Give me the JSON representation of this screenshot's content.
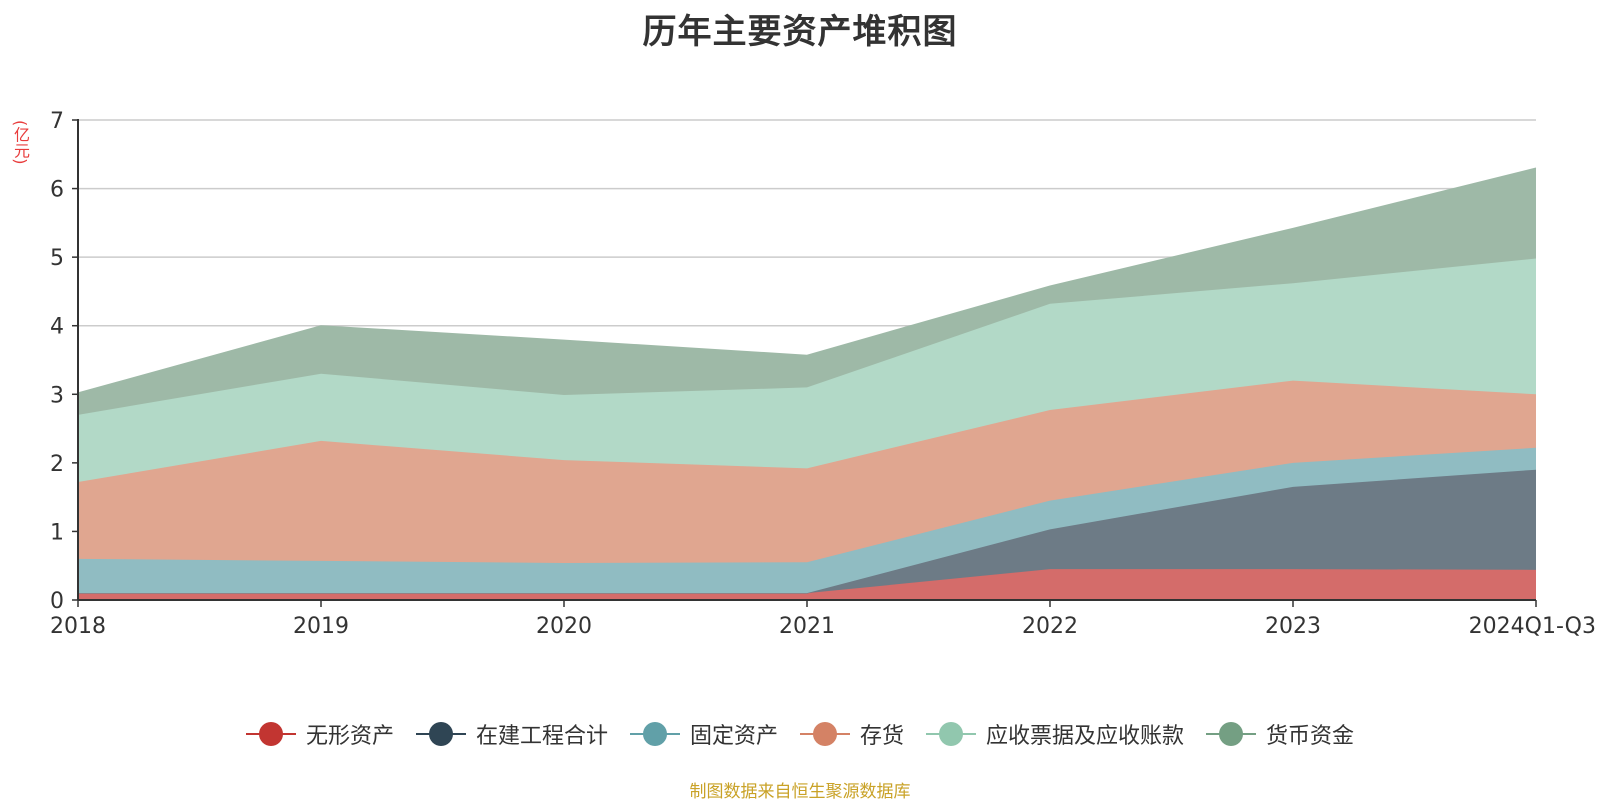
{
  "title": "历年主要资产堆积图",
  "unit_label": "(亿元)",
  "source_note": "制图数据来自恒生聚源数据库",
  "chart_data": {
    "type": "area",
    "stacked": true,
    "title": "历年主要资产堆积图",
    "ylabel": "(亿元)",
    "x": [
      "2018",
      "2019",
      "2020",
      "2021",
      "2022",
      "2023",
      "2024Q1-Q3"
    ],
    "ylim": [
      0,
      7
    ],
    "yticks": [
      0,
      1,
      2,
      3,
      4,
      5,
      6,
      7
    ],
    "grid": true,
    "legend_position": "bottom",
    "series": [
      {
        "name": "无形资产",
        "color": "#c23531",
        "fill": "#d46c6a",
        "values": [
          0.1,
          0.1,
          0.1,
          0.1,
          0.45,
          0.45,
          0.44
        ]
      },
      {
        "name": "在建工程合计",
        "color": "#2f4554",
        "fill": "#6d7b86",
        "values": [
          0.0,
          0.0,
          0.0,
          0.0,
          0.58,
          1.2,
          1.46
        ]
      },
      {
        "name": "固定资产",
        "color": "#61a0a8",
        "fill": "#90bcc2",
        "values": [
          0.5,
          0.47,
          0.44,
          0.45,
          0.42,
          0.35,
          0.32
        ]
      },
      {
        "name": "存货",
        "color": "#d48265",
        "fill": "#e0a690",
        "values": [
          1.12,
          1.75,
          1.5,
          1.37,
          1.32,
          1.2,
          0.78
        ]
      },
      {
        "name": "应收票据及应收账款",
        "color": "#91c7ae",
        "fill": "#b2d9c7",
        "values": [
          0.98,
          0.98,
          0.95,
          1.18,
          1.55,
          1.42,
          1.98
        ]
      },
      {
        "name": "货币资金",
        "color": "#749f83",
        "fill": "#9eb9a7",
        "values": [
          0.32,
          0.7,
          0.8,
          0.47,
          0.26,
          0.8,
          1.32
        ]
      }
    ]
  }
}
